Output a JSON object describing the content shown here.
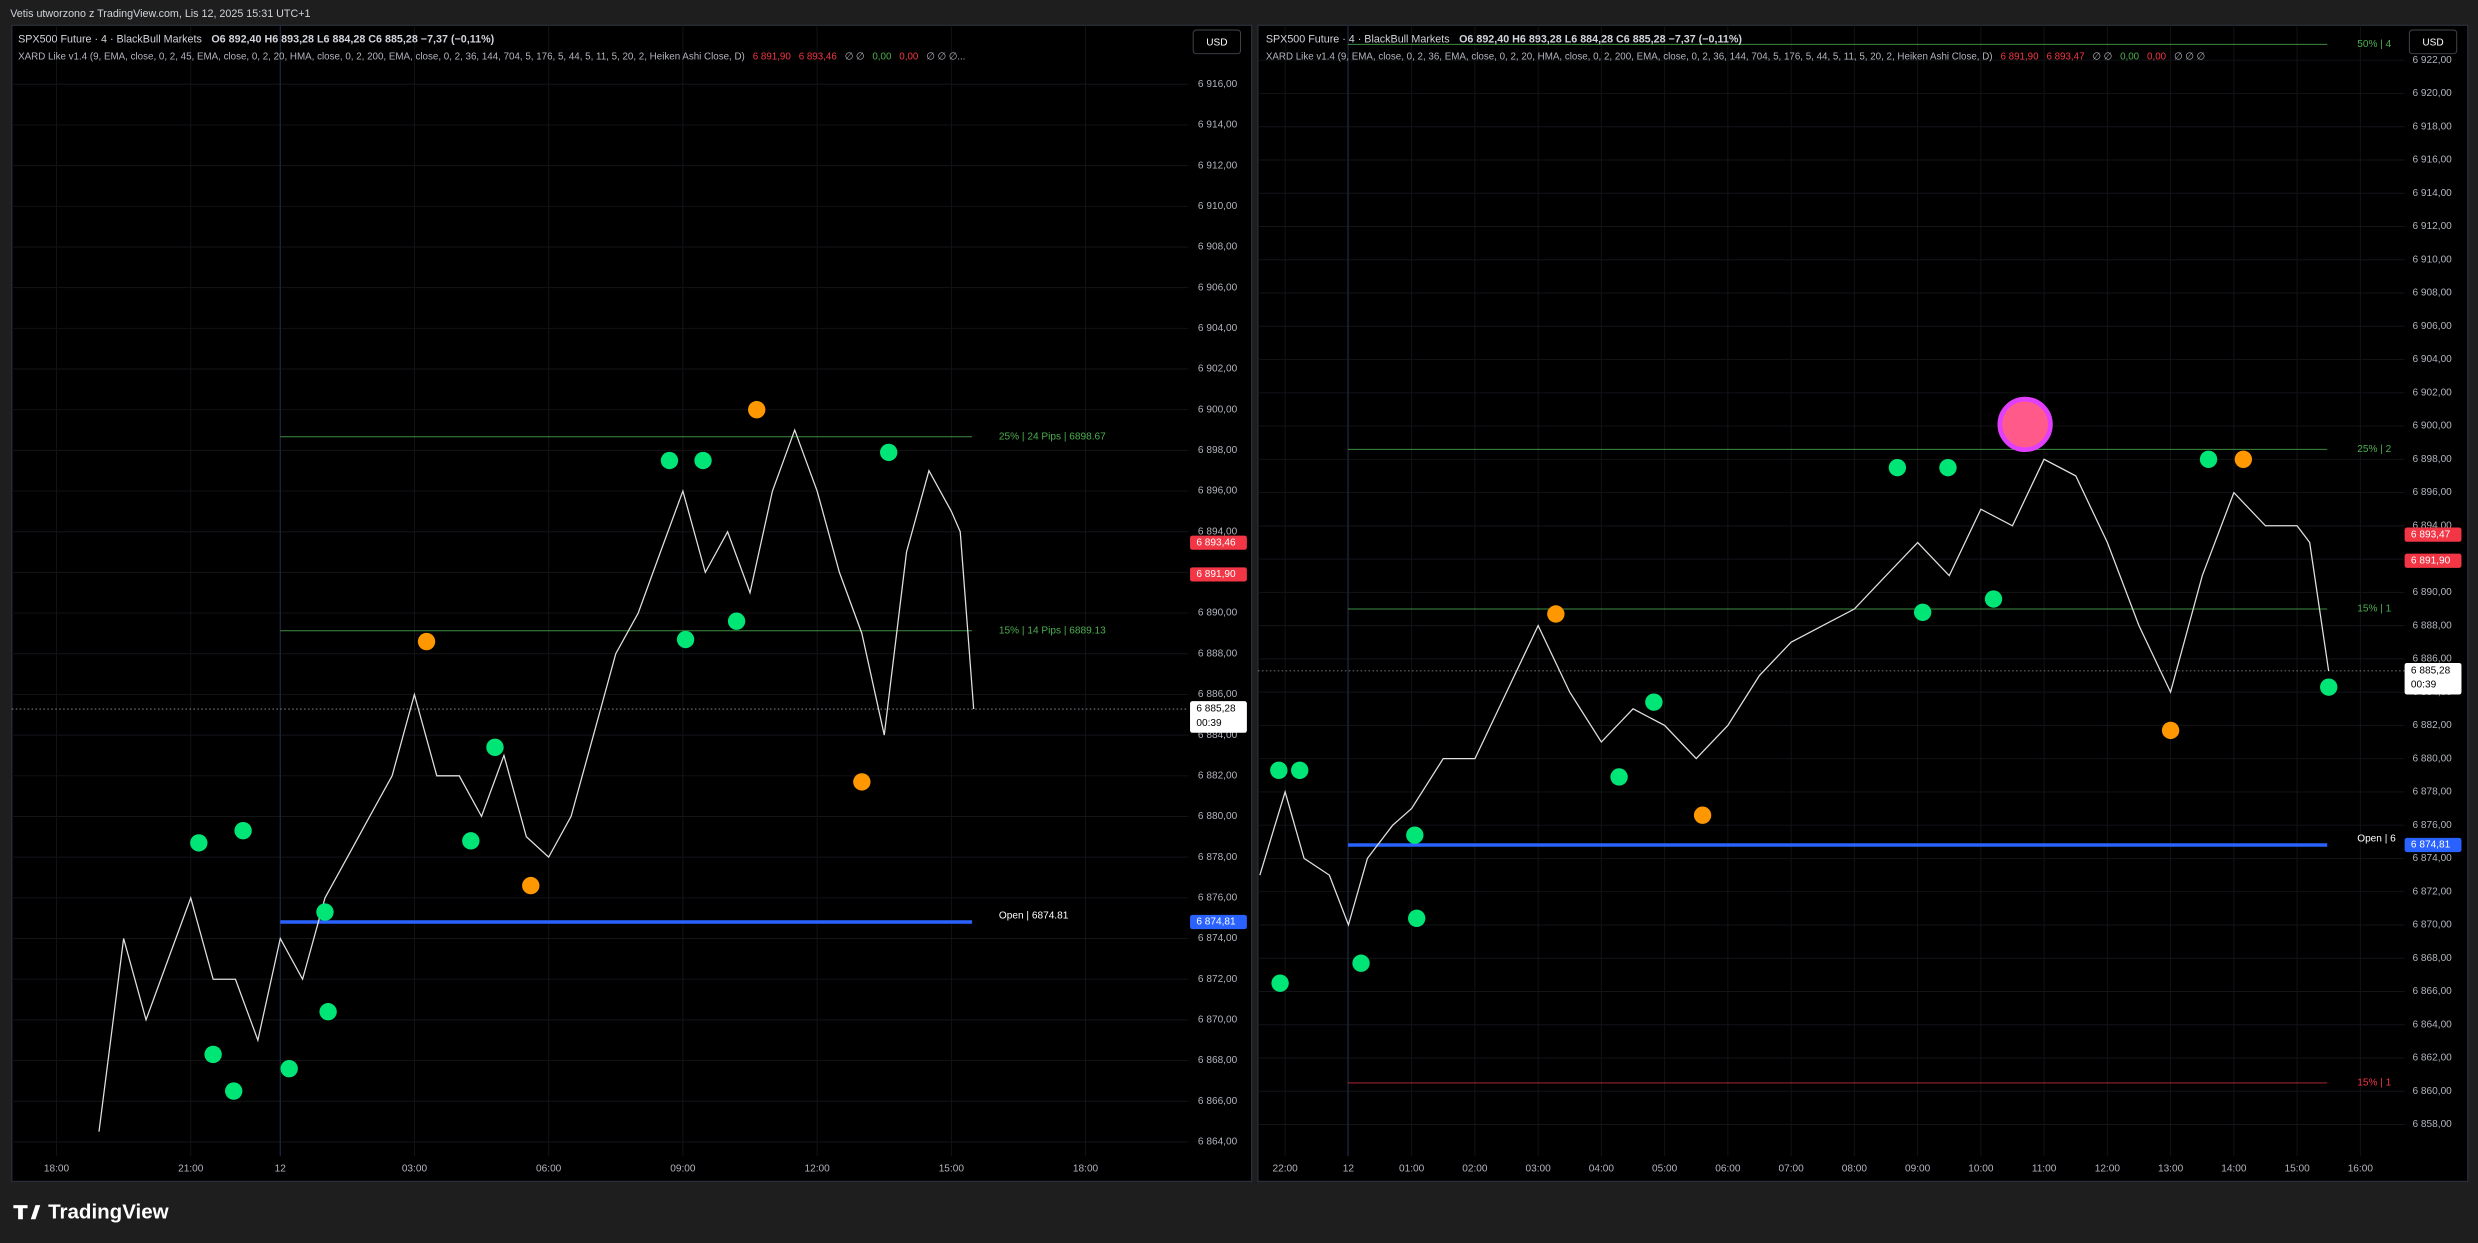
{
  "page_title": "Vetis utworzono z TradingView.com, Lis 12, 2025 15:31 UTC+1",
  "logo": "TradingView",
  "currency": "USD",
  "chart_data": [
    {
      "type": "line",
      "title": "SPX500 Future · 4 · BlackBull Markets",
      "ohlc": "O6 892,40  H6 893,28  L6 884,28  C6 885,28  −7,37 (−0,11%)",
      "indicator": "XARD Like v1.4 (9, EMA, close, 0, 2, 45, EMA, close, 0, 2, 20, HMA, close, 0, 2, 200, EMA, close, 0, 2, 36, 144, 704, 5, 176, 5, 44, 5, 11, 5, 20, 2, Heiken Ashi Close, D)",
      "indicator_values": [
        {
          "text": "6 891,90",
          "color": "#f23645"
        },
        {
          "text": "6 893,46",
          "color": "#f23645"
        },
        {
          "text": "∅  ∅",
          "color": "#b2b5be"
        },
        {
          "text": "0,00",
          "color": "#4caf50"
        },
        {
          "text": "0,00",
          "color": "#f23645"
        },
        {
          "text": "∅  ∅  ∅...",
          "color": "#b2b5be"
        }
      ],
      "color": "#e0e0e0",
      "x": [
        0.95,
        1.5,
        2,
        2.5,
        3,
        3.5,
        4,
        4.5,
        5,
        5.5,
        6,
        6.5,
        7,
        7.5,
        8,
        8.5,
        9,
        9.5,
        10,
        10.5,
        11,
        11.5,
        12,
        12.5,
        13,
        13.5,
        14,
        14.5,
        15,
        15.5,
        16,
        16.5,
        17,
        17.5,
        18,
        18.5,
        19,
        19.5,
        20,
        20.2,
        20.5
      ],
      "values": [
        6864.5,
        6874,
        6870,
        6873,
        6876,
        6872,
        6872,
        6869,
        6874,
        6872,
        6876,
        6878,
        6880,
        6882,
        6886,
        6882,
        6882,
        6880,
        6883,
        6879,
        6878,
        6880,
        6884,
        6888,
        6890,
        6893,
        6896,
        6892,
        6894,
        6891,
        6896,
        6899,
        6896,
        6892,
        6889,
        6884,
        6893,
        6897,
        6895,
        6894,
        6885.28
      ],
      "markers": [
        {
          "color": "#ff9800",
          "x": [
            8.27,
            15.65,
            18.0,
            10.6
          ],
          "values": [
            6888.6,
            6900.0,
            6881.7,
            6876.6
          ]
        },
        {
          "color": "#00e676",
          "x": [
            3.18,
            3.96,
            3.5,
            4.17,
            5.2,
            6.0,
            6.07,
            9.26,
            9.8,
            13.7,
            14.45,
            14.06,
            15.2,
            18.6
          ],
          "values": [
            6878.7,
            6866.5,
            6868.3,
            6879.3,
            6867.6,
            6875.3,
            6870.4,
            6878.8,
            6883.4,
            6897.5,
            6897.5,
            6888.7,
            6889.6,
            6897.9
          ]
        }
      ],
      "levels": [
        {
          "label": "25%  | 24 Pips | 6898.67",
          "value": 6898.67,
          "color": "#4caf50"
        },
        {
          "label": "15%  | 14 Pips | 6889.13",
          "value": 6889.13,
          "color": "#4caf50"
        },
        {
          "label": "Open | 6874.81",
          "value": 6874.81,
          "color": "#2962ff"
        }
      ],
      "last_price": 6885.28,
      "price_labels": [
        {
          "value": 6893.46,
          "label": "6 893,46",
          "color": "#f23645"
        },
        {
          "value": 6891.9,
          "label": "6 891,90",
          "color": "#f23645"
        },
        {
          "value": 6885.28,
          "label": "6 885,28",
          "sublabel": "00:39",
          "color": "#ffffff"
        },
        {
          "value": 6874.81,
          "label": "6 874,81",
          "color": "#2962ff"
        }
      ],
      "xlim": [
        -1,
        25.3
      ],
      "xticks": [
        {
          "value": 0,
          "label": "18:00"
        },
        {
          "value": 3,
          "label": "21:00"
        },
        {
          "value": 5,
          "label": "12"
        },
        {
          "value": 8,
          "label": "03:00"
        },
        {
          "value": 11,
          "label": "06:00"
        },
        {
          "value": 14,
          "label": "09:00"
        },
        {
          "value": 17,
          "label": "12:00"
        },
        {
          "value": 20,
          "label": "15:00"
        },
        {
          "value": 23,
          "label": "18:00"
        }
      ],
      "ylim": [
        6863.3,
        6918.9
      ],
      "yticks": [
        {
          "value": 6864,
          "label": "6 864,00"
        },
        {
          "value": 6866,
          "label": "6 866,00"
        },
        {
          "value": 6868,
          "label": "6 868,00"
        },
        {
          "value": 6870,
          "label": "6 870,00"
        },
        {
          "value": 6872,
          "label": "6 872,00"
        },
        {
          "value": 6874,
          "label": "6 874,00"
        },
        {
          "value": 6876,
          "label": "6 876,00"
        },
        {
          "value": 6878,
          "label": "6 878,00"
        },
        {
          "value": 6880,
          "label": "6 880,00"
        },
        {
          "value": 6882,
          "label": "6 882,00"
        },
        {
          "value": 6884,
          "label": "6 884,00"
        },
        {
          "value": 6886,
          "label": "6 886,00"
        },
        {
          "value": 6888,
          "label": "6 888,00"
        },
        {
          "value": 6890,
          "label": "6 890,00"
        },
        {
          "value": 6892,
          "label": "6 892,00"
        },
        {
          "value": 6894,
          "label": "6 894,00"
        },
        {
          "value": 6896,
          "label": "6 896,00"
        },
        {
          "value": 6898,
          "label": "6 898,00"
        },
        {
          "value": 6900,
          "label": "6 900,00"
        },
        {
          "value": 6902,
          "label": "6 902,00"
        },
        {
          "value": 6904,
          "label": "6 904,00"
        },
        {
          "value": 6906,
          "label": "6 906,00"
        },
        {
          "value": 6908,
          "label": "6 908,00"
        },
        {
          "value": 6910,
          "label": "6 910,00"
        },
        {
          "value": 6912,
          "label": "6 912,00"
        },
        {
          "value": 6914,
          "label": "6 914,00"
        },
        {
          "value": 6916,
          "label": "6 916,00"
        }
      ],
      "grid": true
    },
    {
      "type": "line",
      "title": "SPX500 Future · 4 · BlackBull Markets",
      "ohlc": "O6 892,40  H6 893,28  L6 884,28  C6 885,28  −7,37 (−0,11%)",
      "indicator": "XARD Like v1.4 (9, EMA, close, 0, 2, 36, EMA, close, 0, 2, 20, HMA, close, 0, 2, 200, EMA, close, 0, 2, 36, 144, 704, 5, 176, 5, 44, 5, 11, 5, 20, 2, Heiken Ashi Close, D)",
      "indicator_values": [
        {
          "text": "6 891,90",
          "color": "#f23645"
        },
        {
          "text": "6 893,47",
          "color": "#f23645"
        },
        {
          "text": "∅  ∅",
          "color": "#b2b5be"
        },
        {
          "text": "0,00",
          "color": "#4caf50"
        },
        {
          "text": "0,00",
          "color": "#f23645"
        },
        {
          "text": "∅  ∅  ∅",
          "color": "#b2b5be"
        }
      ],
      "color": "#e0e0e0",
      "x": [
        -0.4,
        0,
        0.3,
        0.7,
        1,
        1.3,
        1.7,
        2,
        2.5,
        3,
        3.5,
        4,
        4.5,
        5,
        5.5,
        6,
        6.5,
        7,
        7.5,
        8,
        8.5,
        9,
        9.5,
        10,
        10.5,
        11,
        11.5,
        12,
        12.5,
        13,
        13.5,
        14,
        14.5,
        15,
        15.5,
        16,
        16.2,
        16.5
      ],
      "values": [
        6873,
        6878,
        6874,
        6873,
        6870,
        6874,
        6876,
        6877,
        6880,
        6880,
        6884,
        6888,
        6884,
        6881,
        6883,
        6882,
        6880,
        6882,
        6885,
        6887,
        6888,
        6889,
        6891,
        6893,
        6891,
        6895,
        6894,
        6898,
        6897,
        6893,
        6888,
        6884,
        6891,
        6896,
        6894,
        6894,
        6893,
        6885.28
      ],
      "markers": [
        {
          "color": "#ff9800",
          "x": [
            4.28,
            6.6,
            14.0,
            15.15
          ],
          "values": [
            6888.7,
            6876.6,
            6881.7,
            6898.0
          ]
        },
        {
          "color": "#ff5a8a",
          "x": [
            11.7
          ],
          "values": [
            6900.1
          ]
        },
        {
          "color": "#00e676",
          "x": [
            -0.08,
            -0.1,
            0.23,
            1.2,
            2.05,
            2.08,
            5.28,
            5.83,
            9.68,
            10.48,
            10.08,
            11.2,
            14.6,
            16.5
          ],
          "values": [
            6866.5,
            6879.3,
            6879.3,
            6867.7,
            6875.4,
            6870.4,
            6878.9,
            6883.4,
            6897.5,
            6897.5,
            6888.8,
            6889.6,
            6898.0,
            6884.3
          ]
        }
      ],
      "levels": [
        {
          "label": "50% | 4",
          "value": 6922.95,
          "color": "#4caf50"
        },
        {
          "label": "25% | 2",
          "value": 6898.6,
          "color": "#4caf50"
        },
        {
          "label": "15% | 1",
          "value": 6889.0,
          "color": "#4caf50"
        },
        {
          "label": "Open | 6",
          "value": 6874.81,
          "color": "#2962ff"
        },
        {
          "label": "15% | 1",
          "value": 6860.5,
          "color": "#f23645"
        }
      ],
      "last_price": 6885.28,
      "price_labels": [
        {
          "value": 6893.47,
          "label": "6 893,47",
          "color": "#f23645"
        },
        {
          "value": 6891.9,
          "label": "6 891,90",
          "color": "#f23645"
        },
        {
          "value": 6885.28,
          "label": "6 885,28",
          "sublabel": "00:39",
          "color": "#ffffff"
        },
        {
          "value": 6874.81,
          "label": "6 874,81",
          "color": "#2962ff"
        }
      ],
      "xlim": [
        -0.43,
        17.7
      ],
      "xticks": [
        {
          "value": 0,
          "label": "22:00"
        },
        {
          "value": 1,
          "label": "12"
        },
        {
          "value": 2,
          "label": "01:00"
        },
        {
          "value": 3,
          "label": "02:00"
        },
        {
          "value": 4,
          "label": "03:00"
        },
        {
          "value": 5,
          "label": "04:00"
        },
        {
          "value": 6,
          "label": "05:00"
        },
        {
          "value": 7,
          "label": "06:00"
        },
        {
          "value": 8,
          "label": "07:00"
        },
        {
          "value": 9,
          "label": "08:00"
        },
        {
          "value": 10,
          "label": "09:00"
        },
        {
          "value": 11,
          "label": "10:00"
        },
        {
          "value": 12,
          "label": "11:00"
        },
        {
          "value": 13,
          "label": "12:00"
        },
        {
          "value": 14,
          "label": "13:00"
        },
        {
          "value": 15,
          "label": "14:00"
        },
        {
          "value": 16,
          "label": "15:00"
        },
        {
          "value": 17,
          "label": "16:00"
        }
      ],
      "ylim": [
        6856.1,
        6924.1
      ],
      "yticks": [
        {
          "value": 6858,
          "label": "6 858,00"
        },
        {
          "value": 6860,
          "label": "6 860,00"
        },
        {
          "value": 6862,
          "label": "6 862,00"
        },
        {
          "value": 6864,
          "label": "6 864,00"
        },
        {
          "value": 6866,
          "label": "6 866,00"
        },
        {
          "value": 6868,
          "label": "6 868,00"
        },
        {
          "value": 6870,
          "label": "6 870,00"
        },
        {
          "value": 6872,
          "label": "6 872,00"
        },
        {
          "value": 6874,
          "label": "6 874,00"
        },
        {
          "value": 6876,
          "label": "6 876,00"
        },
        {
          "value": 6878,
          "label": "6 878,00"
        },
        {
          "value": 6880,
          "label": "6 880,00"
        },
        {
          "value": 6882,
          "label": "6 882,00"
        },
        {
          "value": 6884,
          "label": "6 884,00"
        },
        {
          "value": 6886,
          "label": "6 886,00"
        },
        {
          "value": 6888,
          "label": "6 888,00"
        },
        {
          "value": 6890,
          "label": "6 890,00"
        },
        {
          "value": 6892,
          "label": "6 892,00"
        },
        {
          "value": 6894,
          "label": "6 894,00"
        },
        {
          "value": 6896,
          "label": "6 896,00"
        },
        {
          "value": 6898,
          "label": "6 898,00"
        },
        {
          "value": 6900,
          "label": "6 900,00"
        },
        {
          "value": 6902,
          "label": "6 902,00"
        },
        {
          "value": 6904,
          "label": "6 904,00"
        },
        {
          "value": 6906,
          "label": "6 906,00"
        },
        {
          "value": 6908,
          "label": "6 908,00"
        },
        {
          "value": 6910,
          "label": "6 910,00"
        },
        {
          "value": 6912,
          "label": "6 912,00"
        },
        {
          "value": 6914,
          "label": "6 914,00"
        },
        {
          "value": 6916,
          "label": "6 916,00"
        },
        {
          "value": 6918,
          "label": "6 918,00"
        },
        {
          "value": 6920,
          "label": "6 920,00"
        },
        {
          "value": 6922,
          "label": "6 922,00"
        }
      ],
      "grid": true
    }
  ]
}
